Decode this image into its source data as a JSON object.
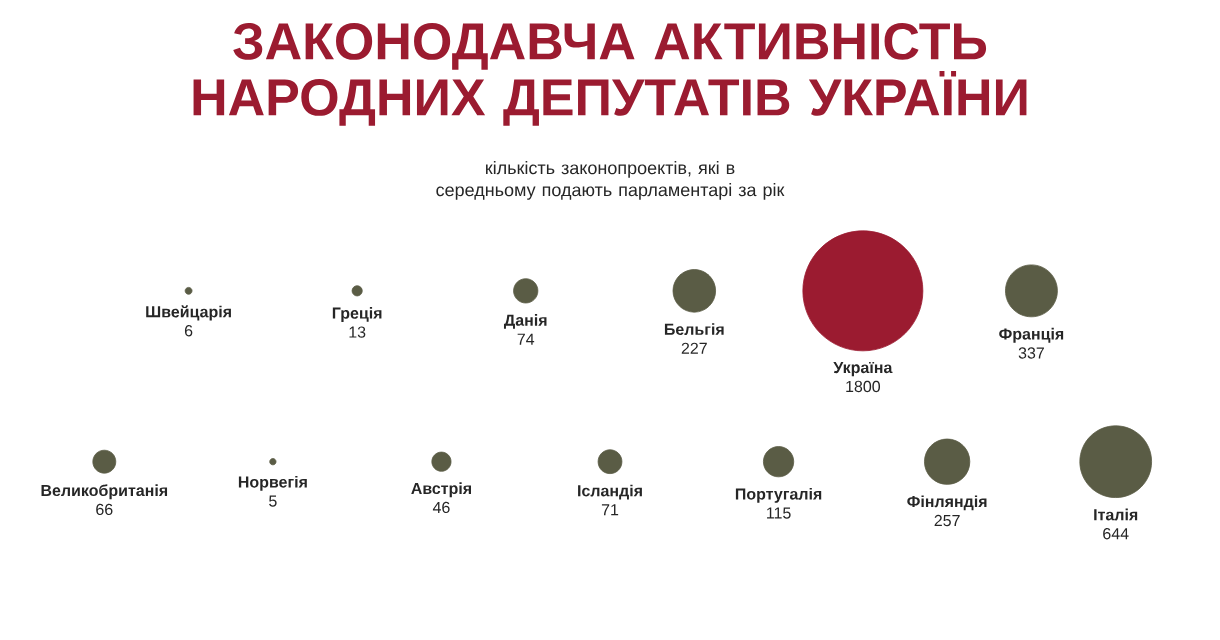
{
  "chart_data": {
    "type": "other",
    "title": "ЗАКОНОДАВЧА АКТИВНІСТЬ НАРОДНИХ ДЕПУТАТІВ УКРАЇНИ",
    "subtitle": "кількість законопроектів, які в середньому подають парламентарі за рік",
    "categories": [
      "Великобританія",
      "Швейцарія",
      "Норвегія",
      "Греція",
      "Австрія",
      "Данія",
      "Ісландія",
      "Бельгія",
      "Португалія",
      "Україна",
      "Фінляндія",
      "Франція",
      "Італія"
    ],
    "values": [
      66,
      6,
      5,
      13,
      46,
      74,
      71,
      227,
      115,
      1800,
      257,
      337,
      644
    ],
    "colors": [
      "#5a5c45",
      "#5a5c45",
      "#5a5c45",
      "#5a5c45",
      "#5a5c45",
      "#5a5c45",
      "#5a5c45",
      "#5a5c45",
      "#5a5c45",
      "#9b1b30",
      "#5a5c45",
      "#5a5c45",
      "#5a5c45"
    ],
    "data_labels": true
  }
}
